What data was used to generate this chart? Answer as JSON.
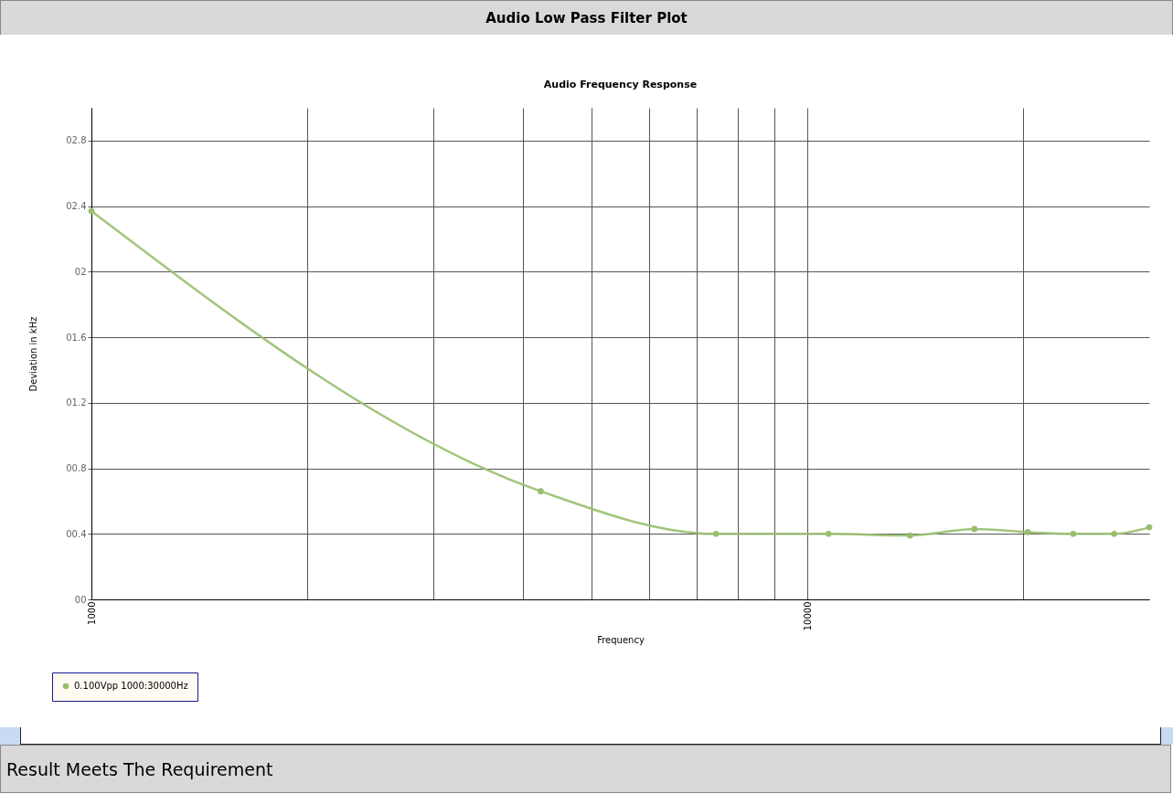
{
  "chart_data": {
    "type": "line",
    "title": "Audio Low Pass Filter Plot",
    "subtitle": "Audio Frequency Response",
    "xlabel": "Frequency",
    "ylabel": "Deviation in kHz",
    "annotations": [
      "Result Meets The Requirement"
    ],
    "x": [
      1000,
      4240,
      7450,
      10700,
      13900,
      17100,
      20300,
      23500,
      26800,
      30000
    ],
    "series": [
      {
        "name": "0.100Vpp 1000:30000Hz",
        "color": "#98bf6e",
        "values": [
          2.37,
          0.66,
          0.4,
          0.4,
          0.39,
          0.43,
          0.41,
          0.4,
          0.4,
          0.44
        ]
      }
    ],
    "xlim": [
      1000,
      30000
    ],
    "ylim": [
      0,
      3.0
    ],
    "xticks": [
      1000,
      {
        "value": 2000,
        "label": null
      },
      {
        "value": 3000,
        "label": null
      },
      {
        "value": 4000,
        "label": null
      },
      {
        "value": 5000,
        "label": null
      },
      {
        "value": 6000,
        "label": null
      },
      {
        "value": 7000,
        "label": null
      },
      {
        "value": 8000,
        "label": null
      },
      {
        "value": 9000,
        "label": null
      },
      10000,
      {
        "value": 20000,
        "label": null
      }
    ],
    "yticks": [
      {
        "value": 0,
        "label": "00"
      },
      {
        "value": 0.4,
        "label": "00.4"
      },
      {
        "value": 0.8,
        "label": "00.8"
      },
      {
        "value": 1.2,
        "label": "01.2"
      },
      {
        "value": 1.6,
        "label": "01.6"
      },
      {
        "value": 2,
        "label": "02"
      },
      {
        "value": 2.4,
        "label": "02.4"
      },
      {
        "value": 2.8,
        "label": "02.8"
      }
    ],
    "log": "x",
    "grid": true,
    "legend": "bottom",
    "marker": "circle",
    "line_style": "solid"
  }
}
